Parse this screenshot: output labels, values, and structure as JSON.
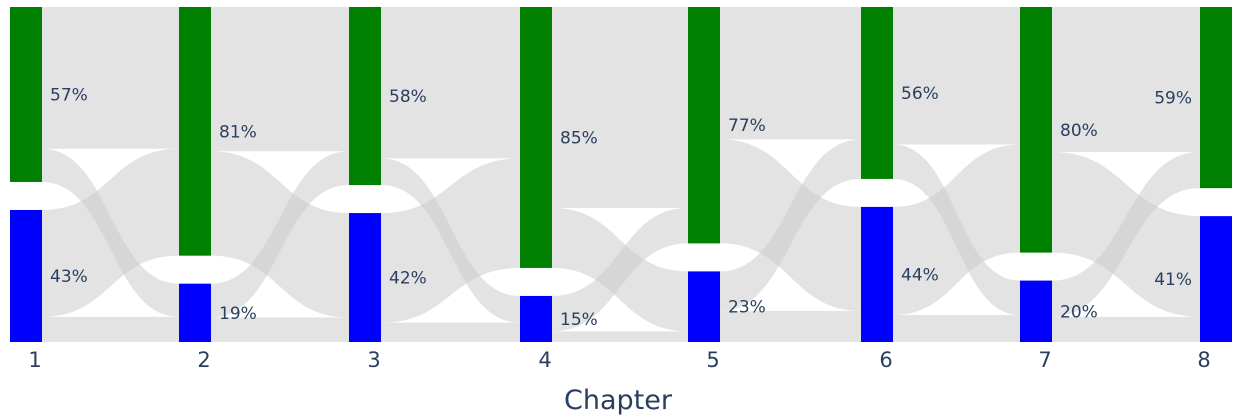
{
  "chart_data": {
    "type": "sankey",
    "xlabel": "Chapter",
    "categories": [
      "1",
      "2",
      "3",
      "4",
      "5",
      "6",
      "7",
      "8"
    ],
    "series": [
      {
        "name": "",
        "color": "#008000",
        "values": [
          57,
          81,
          58,
          85,
          77,
          56,
          80,
          59
        ]
      },
      {
        "name": "",
        "color": "#0000ff",
        "values": [
          43,
          19,
          42,
          15,
          23,
          44,
          20,
          41
        ]
      }
    ],
    "labels": {
      "top": [
        "57%",
        "81%",
        "58%",
        "85%",
        "77%",
        "56%",
        "80%",
        "59%"
      ],
      "bottom": [
        "43%",
        "19%",
        "42%",
        "15%",
        "23%",
        "44%",
        "20%",
        "41%"
      ]
    },
    "link_color": "#cccccc"
  }
}
